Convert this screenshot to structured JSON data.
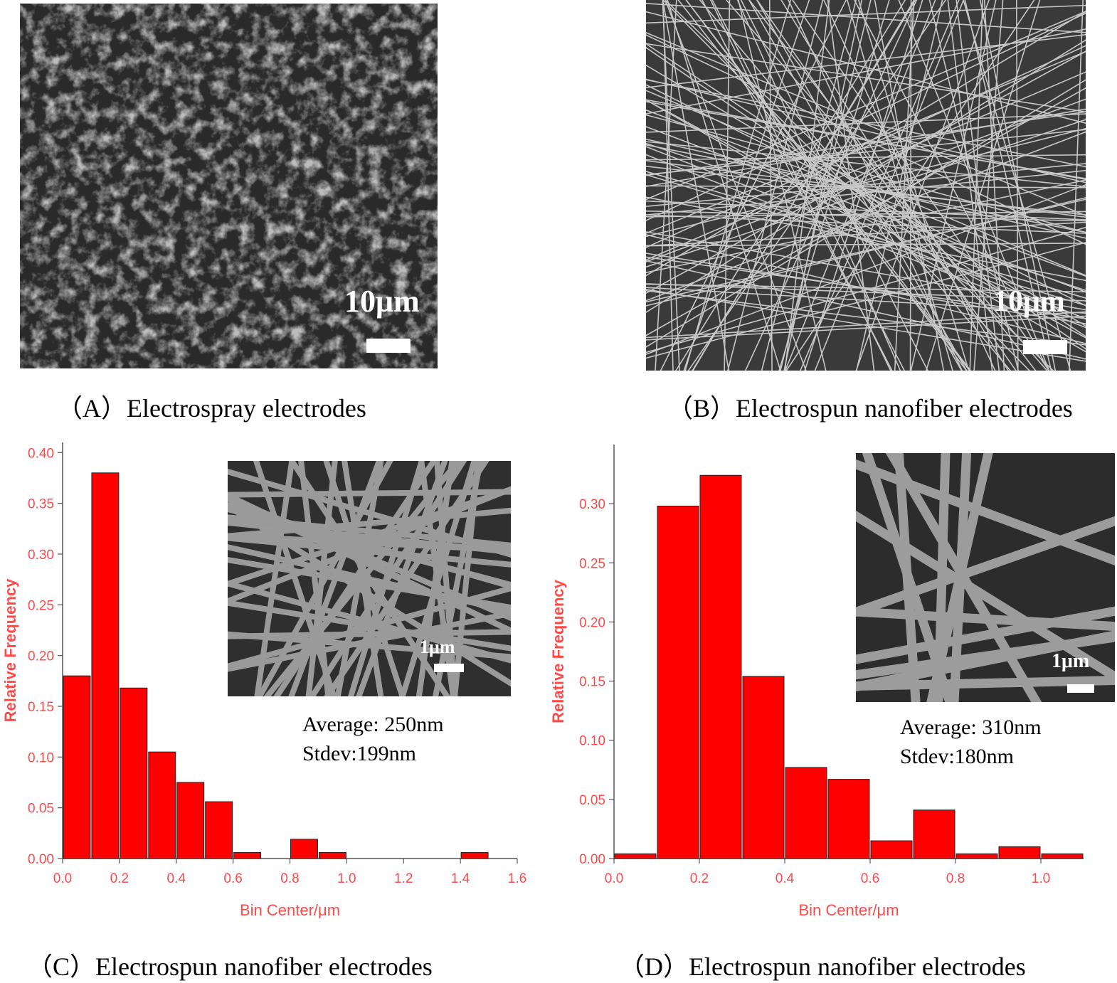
{
  "panels": {
    "a": {
      "scale_label": "10μm",
      "caption": "（A）Electrospray electrodes"
    },
    "b": {
      "scale_label": "10μm",
      "caption": "（B）Electrospun nanofiber electrodes"
    },
    "c": {
      "inset_scale_label": "1μm",
      "average": "Average: 250nm",
      "stdev": "Stdev:199nm",
      "caption": "（C）Electrospun nanofiber electrodes"
    },
    "d": {
      "inset_scale_label": "1μm",
      "average": "Average: 310nm",
      "stdev": "Stdev:180nm",
      "caption": "（D）Electrospun nanofiber electrodes"
    }
  },
  "colors": {
    "bar": "#ff0000",
    "axis_text": "#ff4a4a",
    "sem_dark": "#2b2b2b"
  },
  "chart_data": [
    {
      "type": "bar",
      "xlabel": "Bin Center/μm",
      "ylabel": "Relative Frequency",
      "xlim": [
        0.0,
        1.6
      ],
      "ylim": [
        0.0,
        0.41
      ],
      "xticks": [
        "0.0",
        "0.2",
        "0.4",
        "0.6",
        "0.8",
        "1.0",
        "1.2",
        "1.4",
        "1.6"
      ],
      "yticks": [
        "0.00",
        "0.05",
        "0.10",
        "0.15",
        "0.20",
        "0.25",
        "0.30",
        "0.35",
        "0.40"
      ],
      "bin_width": 0.1,
      "x": [
        0.05,
        0.15,
        0.25,
        0.35,
        0.45,
        0.55,
        0.65,
        0.85,
        0.95,
        1.45
      ],
      "values": [
        0.18,
        0.38,
        0.168,
        0.105,
        0.075,
        0.056,
        0.006,
        0.019,
        0.006,
        0.006
      ]
    },
    {
      "type": "bar",
      "xlabel": "Bin Center/μm",
      "ylabel": "Relative Frequency",
      "xlim": [
        0.0,
        1.1
      ],
      "ylim": [
        0.0,
        0.35
      ],
      "xticks": [
        "0.0",
        "0.2",
        "0.4",
        "0.6",
        "0.8",
        "1.0"
      ],
      "yticks": [
        "0.00",
        "0.05",
        "0.10",
        "0.15",
        "0.20",
        "0.25",
        "0.30"
      ],
      "bin_width": 0.1,
      "x": [
        0.05,
        0.15,
        0.25,
        0.35,
        0.45,
        0.55,
        0.65,
        0.75,
        0.85,
        0.95,
        1.05
      ],
      "values": [
        0.004,
        0.298,
        0.324,
        0.154,
        0.077,
        0.067,
        0.015,
        0.041,
        0.004,
        0.01,
        0.004
      ]
    }
  ]
}
